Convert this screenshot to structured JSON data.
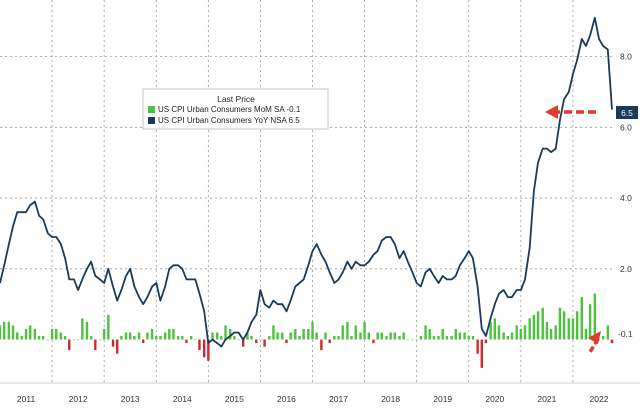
{
  "chart_data": {
    "type": "line",
    "legend_title": "Last Price",
    "legend_position": "top-left",
    "grid": true,
    "x_ticks": [
      "2011",
      "2012",
      "2013",
      "2014",
      "2015",
      "2016",
      "2017",
      "2018",
      "2019",
      "2020",
      "2021",
      "2022"
    ],
    "x_range": [
      2011.0,
      2022.75
    ],
    "ylim": [
      -1.2,
      9.6
    ],
    "y_ticks": [
      {
        "value": 8.0,
        "label": "8.0"
      },
      {
        "value": 6.0,
        "label": "6.0"
      },
      {
        "value": 4.0,
        "label": "4.0"
      },
      {
        "value": 2.0,
        "label": "2.0"
      }
    ],
    "series": [
      {
        "name": "US CPI Urban Consumers YoY NSA",
        "legend_label": "US CPI Urban Consumers YoY NSA 6.5",
        "type": "line",
        "color": "#1b3a57",
        "last_value": 6.5,
        "last_label": "6.5",
        "x": [
          2011.0,
          2011.08,
          2011.17,
          2011.25,
          2011.33,
          2011.42,
          2011.5,
          2011.58,
          2011.67,
          2011.75,
          2011.83,
          2011.92,
          2012.0,
          2012.08,
          2012.17,
          2012.25,
          2012.33,
          2012.42,
          2012.5,
          2012.58,
          2012.67,
          2012.75,
          2012.83,
          2012.92,
          2013.0,
          2013.08,
          2013.17,
          2013.25,
          2013.33,
          2013.42,
          2013.5,
          2013.58,
          2013.67,
          2013.75,
          2013.83,
          2013.92,
          2014.0,
          2014.08,
          2014.17,
          2014.25,
          2014.33,
          2014.42,
          2014.5,
          2014.58,
          2014.67,
          2014.75,
          2014.83,
          2014.92,
          2015.0,
          2015.08,
          2015.17,
          2015.25,
          2015.33,
          2015.42,
          2015.5,
          2015.58,
          2015.67,
          2015.75,
          2015.83,
          2015.92,
          2016.0,
          2016.08,
          2016.17,
          2016.25,
          2016.33,
          2016.42,
          2016.5,
          2016.58,
          2016.67,
          2016.75,
          2016.83,
          2016.92,
          2017.0,
          2017.08,
          2017.17,
          2017.25,
          2017.33,
          2017.42,
          2017.5,
          2017.58,
          2017.67,
          2017.75,
          2017.83,
          2017.92,
          2018.0,
          2018.08,
          2018.17,
          2018.25,
          2018.33,
          2018.42,
          2018.5,
          2018.58,
          2018.67,
          2018.75,
          2018.83,
          2018.92,
          2019.0,
          2019.08,
          2019.17,
          2019.25,
          2019.33,
          2019.42,
          2019.5,
          2019.58,
          2019.67,
          2019.75,
          2019.83,
          2019.92,
          2020.0,
          2020.08,
          2020.17,
          2020.25,
          2020.33,
          2020.42,
          2020.5,
          2020.58,
          2020.67,
          2020.75,
          2020.83,
          2020.92,
          2021.0,
          2021.08,
          2021.17,
          2021.25,
          2021.33,
          2021.42,
          2021.5,
          2021.58,
          2021.67,
          2021.75,
          2021.83,
          2021.92,
          2022.0,
          2022.08,
          2022.17,
          2022.25,
          2022.33,
          2022.42,
          2022.5,
          2022.58,
          2022.67,
          2022.75
        ],
        "values": [
          1.6,
          2.1,
          2.7,
          3.2,
          3.6,
          3.6,
          3.6,
          3.8,
          3.9,
          3.5,
          3.4,
          3.0,
          2.9,
          2.9,
          2.7,
          2.3,
          1.7,
          1.7,
          1.4,
          1.7,
          2.0,
          2.2,
          1.8,
          1.7,
          1.6,
          2.0,
          1.5,
          1.1,
          1.4,
          1.8,
          2.0,
          1.5,
          1.2,
          1.0,
          1.2,
          1.5,
          1.6,
          1.1,
          1.5,
          2.0,
          2.1,
          2.1,
          2.0,
          1.7,
          1.7,
          1.7,
          1.3,
          0.8,
          -0.1,
          0.0,
          -0.1,
          -0.2,
          0.0,
          0.1,
          0.2,
          0.2,
          0.0,
          0.2,
          0.5,
          0.7,
          1.4,
          1.0,
          0.9,
          1.1,
          1.0,
          1.0,
          0.8,
          1.1,
          1.5,
          1.6,
          1.7,
          2.1,
          2.5,
          2.7,
          2.4,
          2.2,
          1.9,
          1.6,
          1.7,
          1.9,
          2.2,
          2.0,
          2.2,
          2.1,
          2.1,
          2.2,
          2.4,
          2.5,
          2.8,
          2.9,
          2.9,
          2.7,
          2.3,
          2.5,
          2.2,
          1.9,
          1.6,
          1.5,
          1.9,
          2.0,
          1.8,
          1.6,
          1.8,
          1.7,
          1.7,
          1.8,
          2.1,
          2.3,
          2.5,
          2.3,
          1.5,
          0.3,
          0.1,
          0.6,
          1.0,
          1.3,
          1.4,
          1.2,
          1.2,
          1.4,
          1.4,
          1.7,
          2.6,
          4.2,
          5.0,
          5.4,
          5.4,
          5.3,
          5.4,
          6.2,
          6.8,
          7.0,
          7.5,
          7.9,
          8.5,
          8.3,
          8.6,
          9.1,
          8.5,
          8.3,
          8.2,
          6.5
        ]
      },
      {
        "name": "US CPI Urban Consumers MoM SA",
        "legend_label": "US CPI Urban Consumers MoM SA  -0.1",
        "type": "bar",
        "color_positive": "#4cc33c",
        "color_negative": "#cc2a2a",
        "last_value": -0.1,
        "last_label": "-0.1",
        "values": [
          0.4,
          0.5,
          0.5,
          0.4,
          0.2,
          0.1,
          0.3,
          0.4,
          0.3,
          0.1,
          0.1,
          0.0,
          0.3,
          0.3,
          0.2,
          0.1,
          -0.3,
          0.0,
          0.0,
          0.6,
          0.5,
          0.1,
          -0.3,
          0.0,
          0.3,
          0.7,
          -0.2,
          -0.4,
          0.1,
          0.2,
          0.2,
          0.1,
          0.2,
          -0.1,
          0.2,
          0.3,
          0.1,
          0.1,
          0.2,
          0.3,
          0.3,
          0.1,
          0.1,
          -0.1,
          0.1,
          0.0,
          -0.3,
          -0.5,
          -0.6,
          0.2,
          0.2,
          0.1,
          0.4,
          0.3,
          0.1,
          0.0,
          -0.2,
          0.2,
          0.1,
          -0.1,
          0.0,
          -0.2,
          0.1,
          0.4,
          0.2,
          0.2,
          -0.1,
          0.2,
          0.3,
          0.1,
          0.3,
          0.3,
          0.5,
          0.2,
          -0.3,
          0.2,
          -0.1,
          0.1,
          0.1,
          0.4,
          0.5,
          0.1,
          0.4,
          0.2,
          0.5,
          0.2,
          -0.1,
          0.2,
          0.2,
          0.1,
          0.2,
          0.2,
          0.1,
          0.2,
          0.0,
          0.0,
          0.0,
          0.1,
          0.4,
          0.3,
          0.1,
          0.1,
          0.3,
          0.1,
          0.1,
          0.3,
          0.2,
          0.2,
          0.1,
          0.1,
          -0.4,
          -0.8,
          -0.1,
          0.5,
          0.6,
          0.4,
          0.2,
          0.1,
          0.2,
          0.4,
          0.3,
          0.4,
          0.6,
          0.7,
          0.8,
          0.9,
          0.5,
          0.3,
          0.4,
          0.9,
          0.8,
          0.6,
          0.6,
          0.8,
          1.2,
          0.3,
          1.0,
          1.3,
          0.0,
          0.1,
          0.4,
          -0.1
        ]
      }
    ],
    "annotations": [
      {
        "type": "arrow",
        "target": "US CPI Urban Consumers YoY NSA",
        "value": 6.5,
        "color": "#e23b2e"
      },
      {
        "type": "arrow",
        "target": "US CPI Urban Consumers MoM SA",
        "value": -0.1,
        "color": "#e23b2e"
      }
    ]
  }
}
